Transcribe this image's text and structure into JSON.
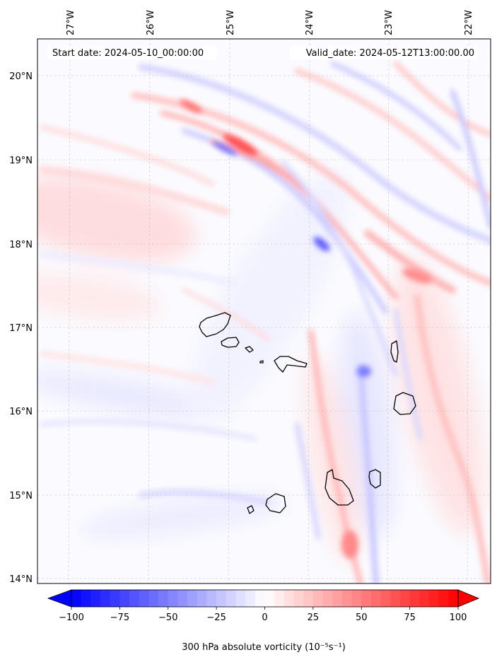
{
  "map": {
    "start_date_label": "Start date: 2024-05-10_00:00:00",
    "valid_date_label": "Valid_date: 2024-05-12T13:00:00.00",
    "lon_ticks": [
      "27°W",
      "26°W",
      "25°W",
      "24°W",
      "23°W",
      "22°W"
    ],
    "lat_ticks": [
      "20°N",
      "19°N",
      "18°N",
      "17°N",
      "16°N",
      "15°N",
      "14°N"
    ],
    "lon_values": [
      -27,
      -26,
      -25,
      -24,
      -23,
      -22
    ],
    "lat_values": [
      20,
      19,
      18,
      17,
      16,
      15,
      14
    ],
    "extent": {
      "lon_min": -27.4,
      "lon_max": -21.67,
      "lat_min": 13.95,
      "lat_max": 20.43
    },
    "coastlines": "Cabo Verde islands",
    "gridlines": true
  },
  "colorbar": {
    "label": "300 hPa absolute vorticity (10⁻⁵s⁻¹)",
    "tick_labels": [
      "−100",
      "−75",
      "−50",
      "−25",
      "0",
      "25",
      "50",
      "75",
      "100"
    ],
    "tick_values": [
      -100,
      -75,
      -50,
      -25,
      0,
      25,
      50,
      75,
      100
    ],
    "range": [
      -100,
      100
    ],
    "extend": "both",
    "colormap": "bwr",
    "color_negative": "#0000ff",
    "color_zero": "#ffffff",
    "color_positive": "#ff0000"
  }
}
